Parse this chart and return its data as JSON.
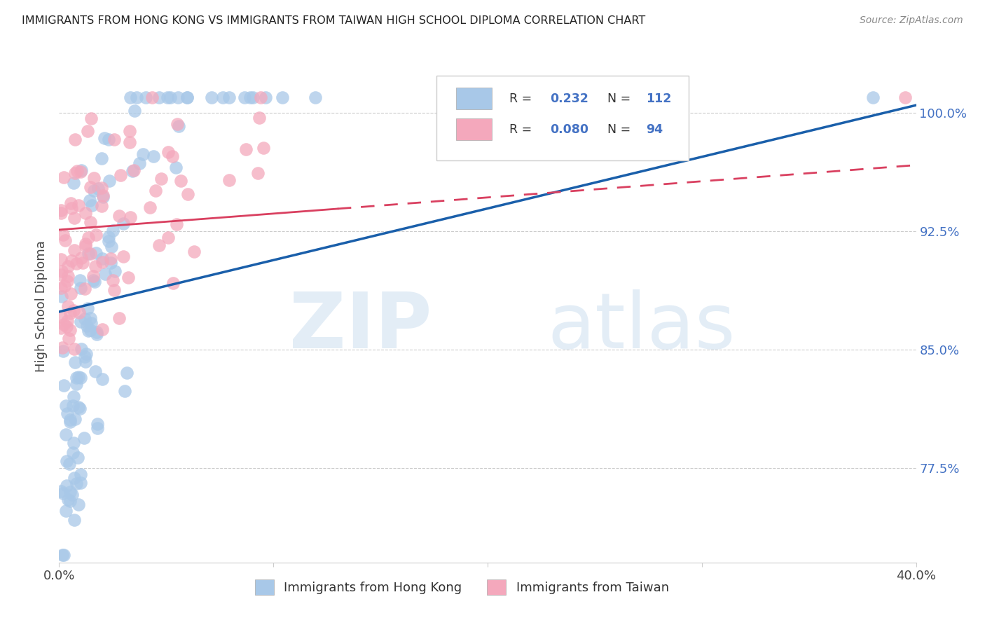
{
  "title": "IMMIGRANTS FROM HONG KONG VS IMMIGRANTS FROM TAIWAN HIGH SCHOOL DIPLOMA CORRELATION CHART",
  "source": "Source: ZipAtlas.com",
  "ylabel": "High School Diploma",
  "yticks": [
    "77.5%",
    "85.0%",
    "92.5%",
    "100.0%"
  ],
  "ytick_vals": [
    0.775,
    0.85,
    0.925,
    1.0
  ],
  "xlim": [
    0.0,
    0.4
  ],
  "ylim": [
    0.715,
    1.04
  ],
  "legend_hk_R": "0.232",
  "legend_hk_N": "112",
  "legend_tw_R": "0.080",
  "legend_tw_N": "94",
  "hk_color": "#a8c8e8",
  "tw_color": "#f4a8bc",
  "hk_line_color": "#1a5faa",
  "tw_line_color": "#d94060",
  "hk_line_x0": 0.0,
  "hk_line_y0": 0.874,
  "hk_line_x1": 0.4,
  "hk_line_y1": 1.005,
  "tw_line_x0": 0.0,
  "tw_line_y0": 0.926,
  "tw_line_x1": 0.4,
  "tw_line_y1": 0.967,
  "tw_line_solid_end": 0.13,
  "watermark_zip": "ZIP",
  "watermark_atlas": "atlas"
}
